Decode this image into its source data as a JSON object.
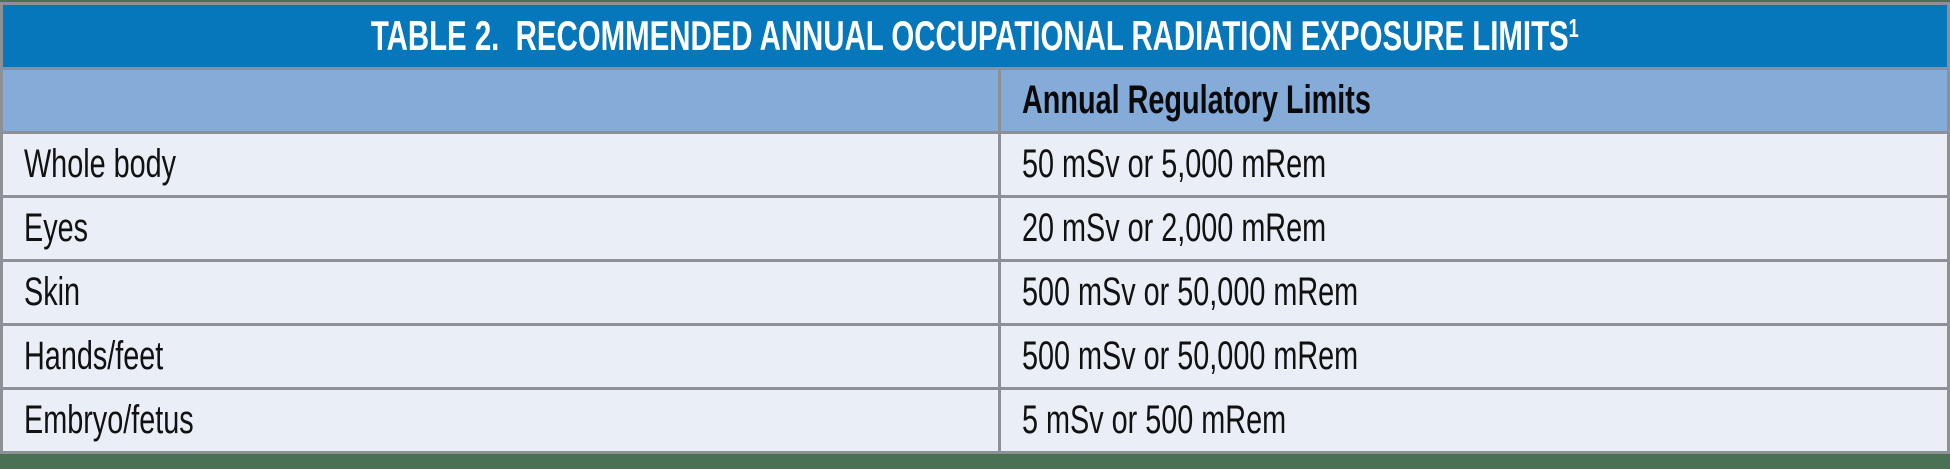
{
  "table": {
    "title": {
      "text": "TABLE 2.  RECOMMENDED ANNUAL OCCUPATIONAL RADIATION EXPOSURE LIMITS",
      "footnote_marker": "1"
    },
    "header": {
      "category_label": "",
      "limits_label": "Annual Regulatory Limits"
    },
    "rows": [
      {
        "category": "Whole body",
        "limit": "50 mSv or 5,000 mRem"
      },
      {
        "category": "Eyes",
        "limit": "20 mSv or 2,000 mRem"
      },
      {
        "category": "Skin",
        "limit": "500 mSv or 50,000 mRem"
      },
      {
        "category": "Hands/feet",
        "limit": "500 mSv or 50,000 mRem"
      },
      {
        "category": "Embryo/fetus",
        "limit": "5 mSv or 500 mRem"
      }
    ],
    "colors": {
      "title_bar": "#0777bb",
      "title_text": "#ffffff",
      "subheader_bg": "#85abd9",
      "row_bg": "#eaeef6",
      "border_gray": "#8d9196",
      "page_strip_green": "#4a7154",
      "body_text": "#111111"
    }
  },
  "chart_data": {
    "type": "table",
    "title": "TABLE 2. RECOMMENDED ANNUAL OCCUPATIONAL RADIATION EXPOSURE LIMITS",
    "columns": [
      "",
      "Annual Regulatory Limits"
    ],
    "rows": [
      [
        "Whole body",
        "50 mSv or 5,000 mRem"
      ],
      [
        "Eyes",
        "20 mSv or 2,000 mRem"
      ],
      [
        "Skin",
        "500 mSv or 50,000 mRem"
      ],
      [
        "Hands/feet",
        "500 mSv or 50,000 mRem"
      ],
      [
        "Embryo/fetus",
        "5 mSv or 500 mRem"
      ]
    ]
  }
}
